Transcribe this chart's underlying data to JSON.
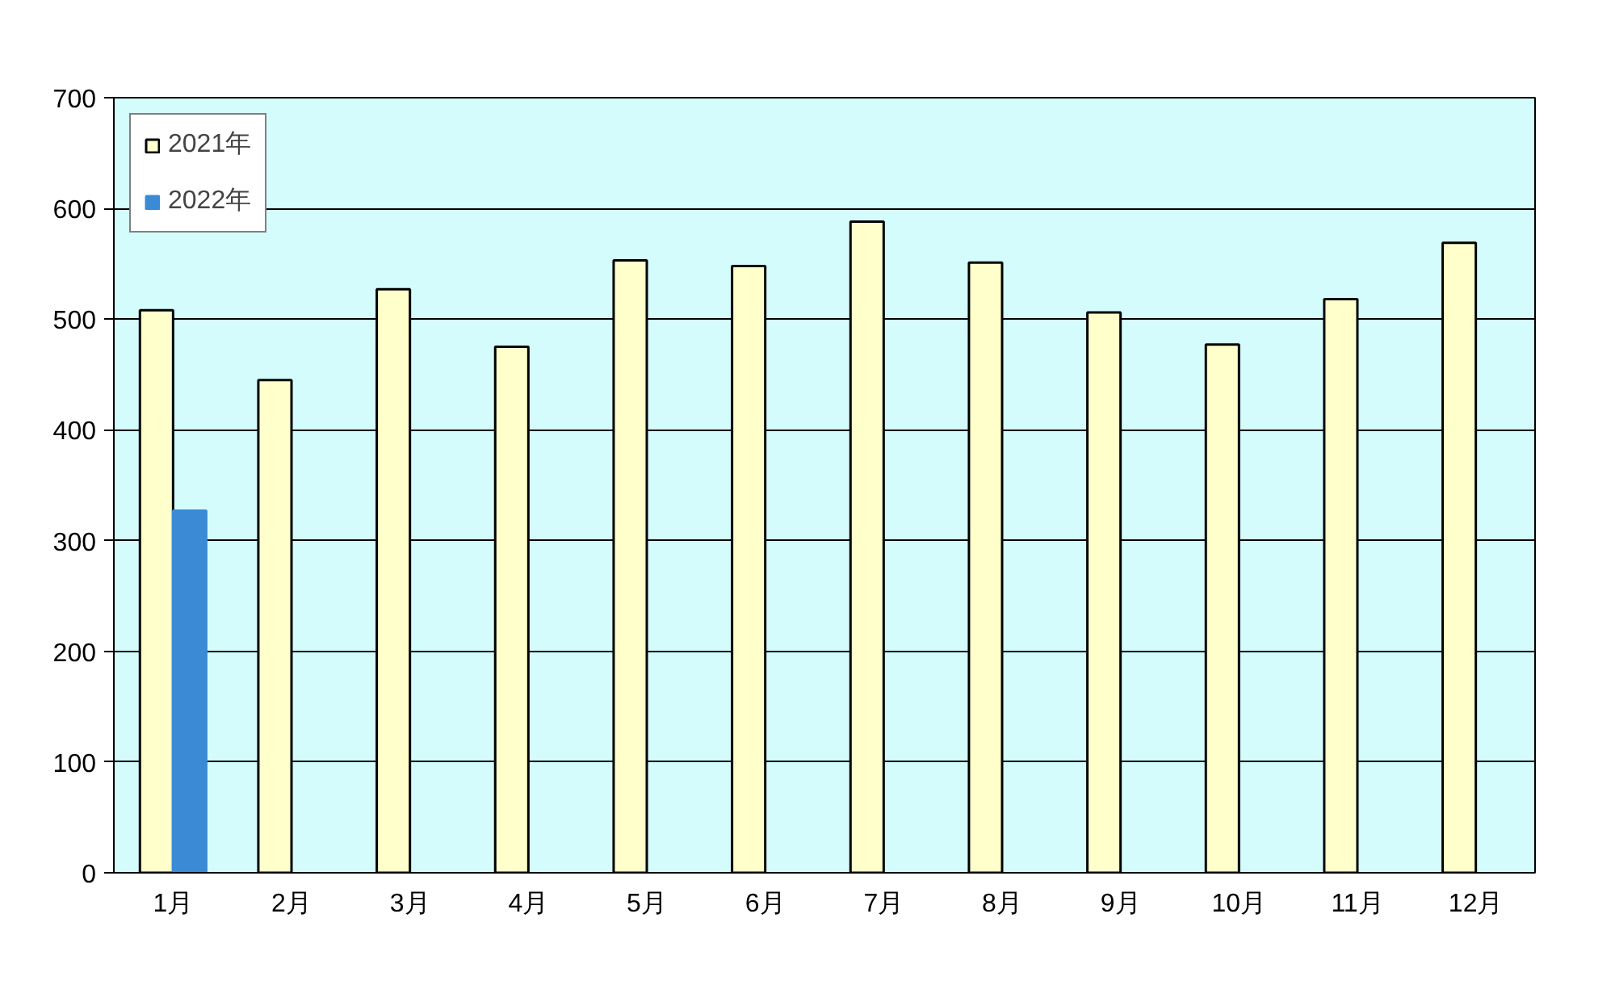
{
  "chart_data": {
    "type": "bar",
    "categories": [
      "1月",
      "2月",
      "3月",
      "4月",
      "5月",
      "6月",
      "7月",
      "8月",
      "9月",
      "10月",
      "11月",
      "12月"
    ],
    "series": [
      {
        "name": "2021年",
        "color": "#ffffcc",
        "values": [
          508,
          445,
          527,
          475,
          553,
          548,
          588,
          551,
          506,
          477,
          518,
          569
        ]
      },
      {
        "name": "2022年",
        "color": "#3a8ad6",
        "values": [
          327,
          null,
          null,
          null,
          null,
          null,
          null,
          null,
          null,
          null,
          null,
          null
        ]
      }
    ],
    "ylim": [
      0,
      700
    ],
    "yticks": [
      0,
      100,
      200,
      300,
      400,
      500,
      600,
      700
    ],
    "grid": "y",
    "legend": "top left"
  }
}
